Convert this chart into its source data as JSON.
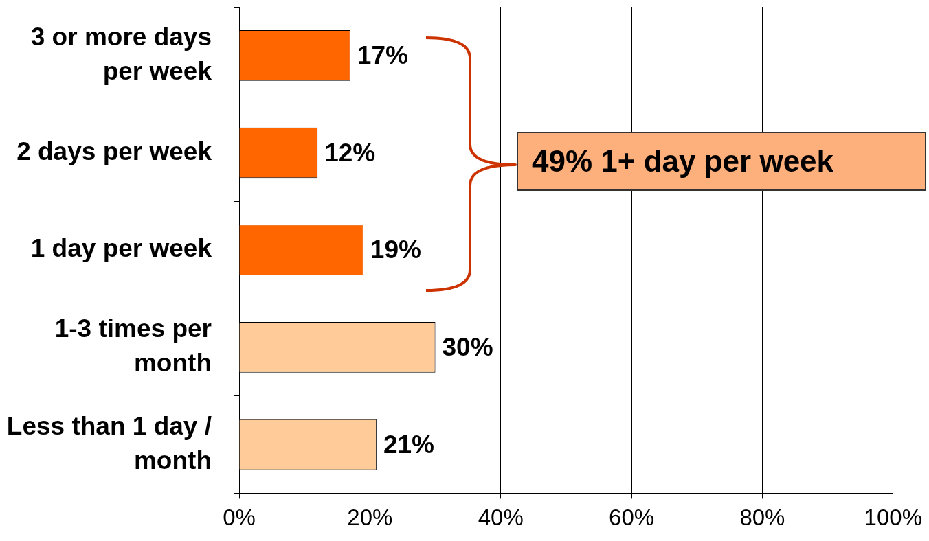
{
  "chart_data": {
    "type": "bar",
    "orientation": "horizontal",
    "categories": [
      "3 or more days per week",
      "2 days per week",
      "1 day per week",
      "1-3 times per month",
      "Less than 1 day / month"
    ],
    "values": [
      17,
      12,
      19,
      30,
      21
    ],
    "colors": [
      "#ff6600",
      "#ff6600",
      "#ff6600",
      "#ffcc99",
      "#ffcc99"
    ],
    "value_labels": [
      "17%",
      "12%",
      "19%",
      "30%",
      "21%"
    ],
    "xlim": [
      0,
      100
    ],
    "xticks": [
      {
        "value": 0,
        "label": "0%"
      },
      {
        "value": 20,
        "label": "20%"
      },
      {
        "value": 40,
        "label": "40%"
      },
      {
        "value": 60,
        "label": "60%"
      },
      {
        "value": 80,
        "label": "80%"
      },
      {
        "value": 100,
        "label": "100%"
      }
    ],
    "grid": "x",
    "annotations": [
      "49% 1+ day per week"
    ]
  }
}
